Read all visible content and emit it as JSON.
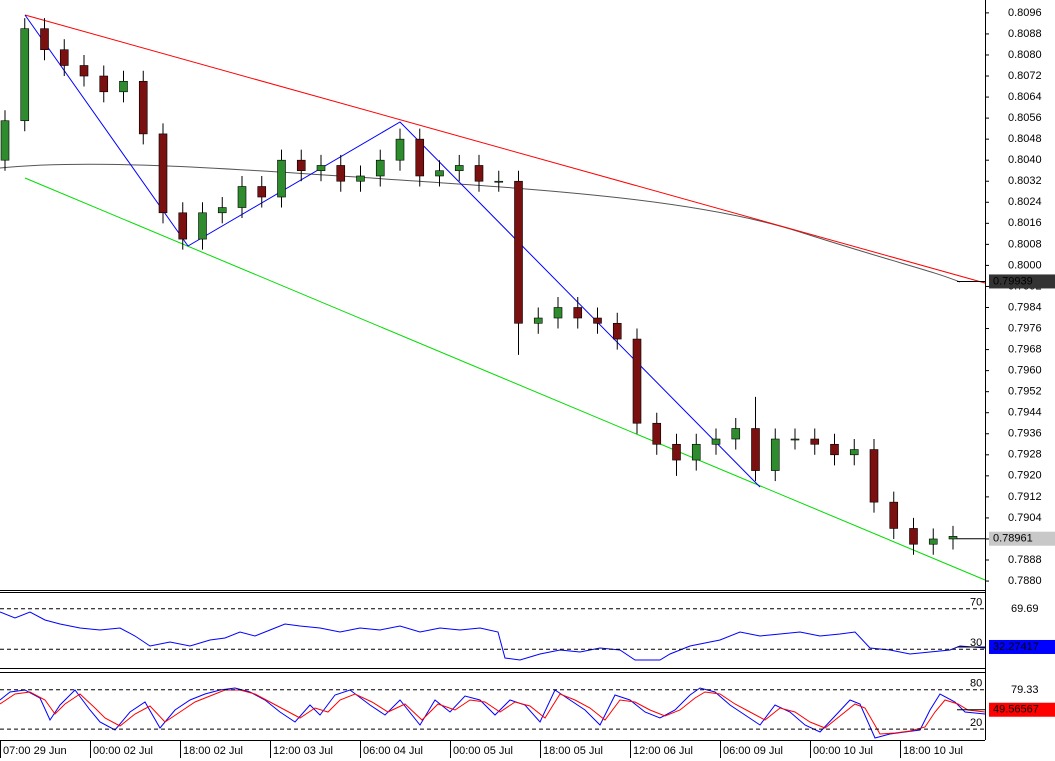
{
  "chart_data": {
    "type": "candlestick",
    "xlabels": [
      "07:00 29 Jun",
      "00:00 02 Jul",
      "18:00 02 Jul",
      "12:00 03 Jul",
      "06:00 04 Jul",
      "00:00 05 Jul",
      "18:00 05 Jul",
      "12:00 06 Jul",
      "06:00 09 Jul",
      "00:00 10 Jul",
      "18:00 10 Jul"
    ],
    "ylim": [
      0.78766,
      0.81009
    ],
    "yticks": [
      0.8096,
      0.8088,
      {
        "value": 0.808,
        "label": "0.8080"
      },
      0.8072,
      0.8064,
      0.8056,
      0.8048,
      {
        "value": 0.804,
        "label": "0.8040"
      },
      0.8032,
      0.8024,
      0.8016,
      0.8008,
      {
        "value": 0.8,
        "label": "0.8000"
      },
      0.7992,
      0.7984,
      0.7976,
      0.7968,
      {
        "value": 0.796,
        "label": "0.7960"
      },
      0.7952,
      0.7944,
      0.7936,
      0.7928,
      {
        "value": 0.792,
        "label": "0.7920"
      },
      0.7912,
      0.7904,
      0.7896,
      0.7888,
      {
        "value": 0.788,
        "label": "0.7880"
      }
    ],
    "up_color": "#2e8b2e",
    "down_color": "#7a1010",
    "open": [
      0.804,
      0.8055,
      0.809,
      0.8082,
      0.8076,
      0.8072,
      0.8066,
      0.807,
      0.805,
      0.802,
      0.801,
      0.802,
      0.8022,
      0.803,
      0.8026,
      0.804,
      0.8036,
      0.8038,
      0.8032,
      0.8034,
      0.804,
      0.8048,
      0.8034,
      0.8036,
      0.8038,
      0.8032,
      0.8032,
      0.7978,
      0.798,
      0.7984,
      0.798,
      0.7978,
      0.7972,
      0.794,
      0.7932,
      0.7926,
      0.7932,
      0.7934,
      0.7938,
      0.7922,
      0.7934,
      0.7934,
      0.7932,
      0.7928,
      0.793,
      0.791,
      0.79,
      0.7894,
      0.7896
    ],
    "high": [
      0.8059,
      0.8094,
      0.8094,
      0.8086,
      0.808,
      0.8076,
      0.8074,
      0.8074,
      0.8054,
      0.8024,
      0.8024,
      0.8026,
      0.8034,
      0.8034,
      0.8044,
      0.8044,
      0.8042,
      0.8042,
      0.8038,
      0.8044,
      0.8052,
      0.8052,
      0.804,
      0.8042,
      0.8042,
      0.8036,
      0.8036,
      0.7984,
      0.7988,
      0.7988,
      0.7984,
      0.7982,
      0.7976,
      0.7944,
      0.7936,
      0.7936,
      0.7938,
      0.7942,
      0.795,
      0.7938,
      0.7938,
      0.7938,
      0.7936,
      0.7934,
      0.7934,
      0.7914,
      0.7904,
      0.79,
      0.7901
    ],
    "low": [
      0.8036,
      0.8051,
      0.8078,
      0.8072,
      0.8068,
      0.8062,
      0.8062,
      0.8046,
      0.8016,
      0.8006,
      0.8006,
      0.8016,
      0.8018,
      0.8022,
      0.8022,
      0.8032,
      0.8032,
      0.8028,
      0.8028,
      0.803,
      0.8036,
      0.803,
      0.803,
      0.8032,
      0.8028,
      0.8028,
      0.7966,
      0.7974,
      0.7976,
      0.7976,
      0.7974,
      0.7968,
      0.7936,
      0.7928,
      0.792,
      0.7922,
      0.7928,
      0.793,
      0.7918,
      0.7918,
      0.793,
      0.7928,
      0.7924,
      0.7924,
      0.7906,
      0.7896,
      0.789,
      0.789,
      0.7892
    ],
    "close": [
      0.8055,
      0.809,
      0.8082,
      0.8076,
      0.8072,
      0.8066,
      0.807,
      0.805,
      0.802,
      0.801,
      0.802,
      0.8022,
      0.803,
      0.8026,
      0.804,
      0.8036,
      0.8038,
      0.8032,
      0.8034,
      0.804,
      0.8048,
      0.8034,
      0.8036,
      0.8038,
      0.8032,
      0.8032,
      0.7978,
      0.798,
      0.7984,
      0.798,
      0.7978,
      0.7972,
      0.794,
      0.7932,
      0.7926,
      0.7932,
      0.7934,
      0.7938,
      0.7922,
      0.7934,
      0.7934,
      0.7932,
      0.7928,
      0.793,
      0.791,
      0.79,
      0.7894,
      0.7896,
      0.7897
    ],
    "trendline_price": 0.79939,
    "current_price": 0.78961,
    "rsi": {
      "levels": [
        70,
        30
      ],
      "ylim": [
        11.5,
        85.6
      ],
      "max_label": 69.69,
      "value": 32.27417,
      "color": "#0000ff"
    },
    "stoch": {
      "levels": [
        80,
        20
      ],
      "ylim": [
        3.5,
        105.5
      ],
      "max_label": 79.33,
      "value": 49.56567,
      "color": "#ff0000"
    }
  }
}
